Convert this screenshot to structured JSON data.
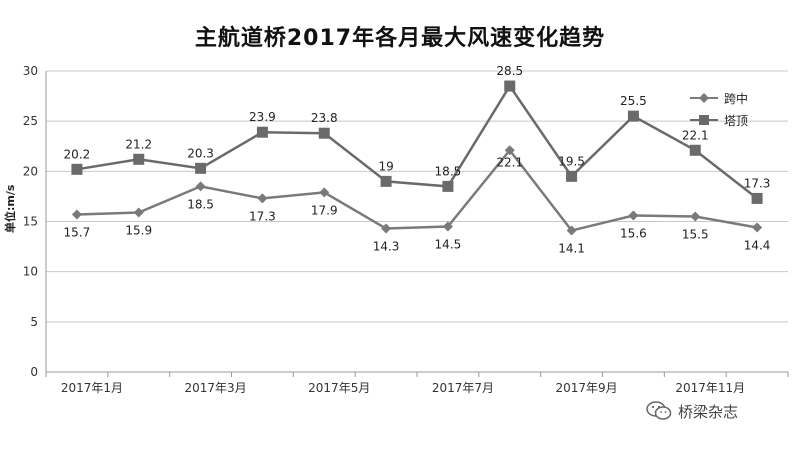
{
  "chart_data": {
    "type": "line",
    "title": "主航道桥2017年各月最大风速变化趋势",
    "ylabel": "单位:m/s",
    "xlabel": "",
    "ylim": [
      0,
      30
    ],
    "yticks": [
      0,
      5,
      10,
      15,
      20,
      25,
      30
    ],
    "x": [
      1,
      2,
      3,
      4,
      5,
      6,
      7,
      8,
      9,
      10,
      11,
      12
    ],
    "xtick_positions": [
      1,
      3,
      5,
      7,
      9,
      11
    ],
    "xtick_labels": [
      "2017年1月",
      "2017年3月",
      "2017年5月",
      "2017年7月",
      "2017年9月",
      "2017年11月"
    ],
    "grid": true,
    "legend_position": "top-right",
    "series": [
      {
        "name": "跨中",
        "marker": "diamond",
        "color": "#7a7a7a",
        "values": [
          15.7,
          15.9,
          18.5,
          17.3,
          17.9,
          14.3,
          14.5,
          22.1,
          14.1,
          15.6,
          15.5,
          14.4
        ],
        "labels": [
          "15.7",
          "15.9",
          "18.5",
          "17.3",
          "17.9",
          "14.3",
          "14.5",
          "22.1",
          "14.1",
          "15.6",
          "15.5",
          "14.4"
        ]
      },
      {
        "name": "塔顶",
        "marker": "square",
        "color": "#6a6a6a",
        "values": [
          20.2,
          21.2,
          20.3,
          23.9,
          23.8,
          19,
          18.5,
          28.5,
          19.5,
          25.5,
          22.1,
          17.3
        ],
        "labels": [
          "20.2",
          "21.2",
          "20.3",
          "23.9",
          "23.8",
          "19",
          "18.5",
          "28.5",
          "19.5",
          "25.5",
          "22.1",
          "17.3"
        ]
      }
    ]
  },
  "watermark": {
    "text": "桥梁杂志",
    "icon": "wechat-icon"
  }
}
